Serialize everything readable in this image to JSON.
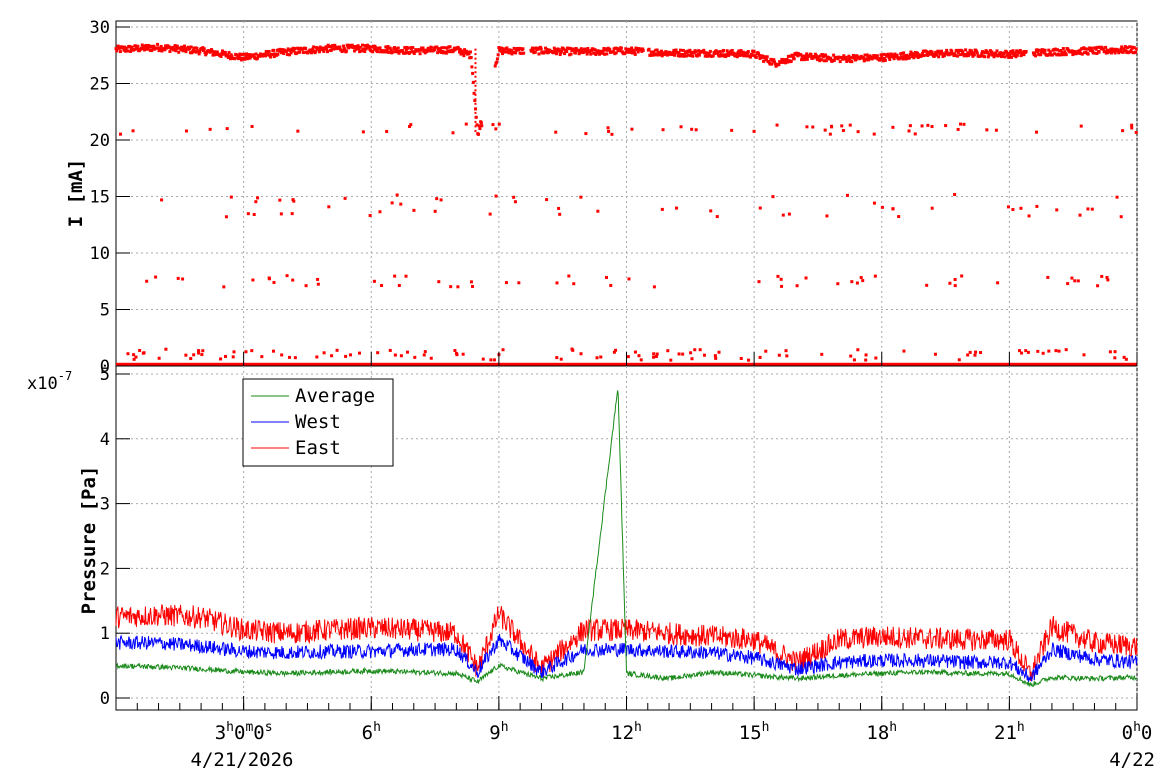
{
  "chart_data": [
    {
      "type": "scatter",
      "ylabel": "I [mA]",
      "ylim": [
        0,
        30
      ],
      "yticks": [
        "0",
        "5",
        "10",
        "15",
        "20",
        "25",
        "30"
      ],
      "grid": true,
      "series": [
        {
          "color": "#ff0000",
          "description": "beam current samples",
          "main_band": [
            [
              0.0,
              28.0
            ],
            [
              1.0,
              28.2
            ],
            [
              2.0,
              27.9
            ],
            [
              3.0,
              27.3
            ],
            [
              4.0,
              27.8
            ],
            [
              5.0,
              28.1
            ],
            [
              6.0,
              28.1
            ],
            [
              7.0,
              27.9
            ],
            [
              8.0,
              28.0
            ],
            [
              8.35,
              27.5
            ],
            [
              8.5,
              20.5
            ],
            [
              9.0,
              27.9
            ],
            [
              10.0,
              27.9
            ],
            [
              11.0,
              27.8
            ],
            [
              12.0,
              27.9
            ],
            [
              13.0,
              27.7
            ],
            [
              14.0,
              27.7
            ],
            [
              15.0,
              27.6
            ],
            [
              15.5,
              26.8
            ],
            [
              16.0,
              27.4
            ],
            [
              17.0,
              27.2
            ],
            [
              18.0,
              27.3
            ],
            [
              19.0,
              27.6
            ],
            [
              20.0,
              27.7
            ],
            [
              21.0,
              27.6
            ],
            [
              22.0,
              27.8
            ],
            [
              23.0,
              27.9
            ],
            [
              24.0,
              28.0
            ]
          ],
          "scatter_levels": [
            21.0,
            14.2,
            7.5,
            1.0,
            0.2
          ]
        }
      ]
    },
    {
      "type": "line",
      "ylabel": "Pressure [Pa]",
      "y_multiplier": "x10",
      "y_exponent": "-7",
      "ylim": [
        0,
        5
      ],
      "yticks": [
        "0",
        "1",
        "2",
        "3",
        "4",
        "5"
      ],
      "grid": true,
      "legend_position": "top-left",
      "series": [
        {
          "name": "Average",
          "color": "#1a8a1a",
          "x": [
            0,
            1,
            2,
            3,
            4,
            5,
            6,
            7,
            8,
            8.5,
            9,
            10,
            11,
            11.8,
            12,
            13,
            14,
            15,
            16,
            17,
            18,
            19,
            20,
            21,
            21.5,
            22,
            23,
            24
          ],
          "y": [
            0.5,
            0.48,
            0.45,
            0.4,
            0.38,
            0.4,
            0.42,
            0.4,
            0.38,
            0.25,
            0.5,
            0.3,
            0.4,
            4.8,
            0.38,
            0.3,
            0.4,
            0.35,
            0.3,
            0.35,
            0.38,
            0.4,
            0.38,
            0.38,
            0.2,
            0.32,
            0.3,
            0.32
          ]
        },
        {
          "name": "West",
          "color": "#0000ff",
          "x": [
            0,
            1,
            2,
            3,
            4,
            5,
            6,
            7,
            8,
            8.5,
            9,
            10,
            11,
            12,
            13,
            14,
            15,
            16,
            17,
            18,
            19,
            20,
            21,
            21.5,
            22,
            23,
            24
          ],
          "y": [
            0.85,
            0.85,
            0.8,
            0.72,
            0.7,
            0.72,
            0.72,
            0.75,
            0.75,
            0.4,
            0.9,
            0.4,
            0.75,
            0.75,
            0.72,
            0.7,
            0.62,
            0.45,
            0.55,
            0.58,
            0.58,
            0.55,
            0.55,
            0.3,
            0.75,
            0.6,
            0.55
          ]
        },
        {
          "name": "East",
          "color": "#ff0000",
          "x": [
            0,
            1,
            2,
            3,
            4,
            5,
            6,
            7,
            8,
            8.5,
            9,
            10,
            11,
            12,
            13,
            14,
            15,
            16,
            17,
            18,
            19,
            20,
            21,
            21.5,
            22,
            23,
            24
          ],
          "y": [
            1.25,
            1.28,
            1.25,
            1.05,
            1.0,
            1.05,
            1.08,
            1.05,
            1.0,
            0.45,
            1.3,
            0.45,
            1.05,
            1.05,
            1.0,
            0.95,
            0.9,
            0.55,
            0.9,
            0.95,
            0.92,
            0.9,
            0.9,
            0.35,
            1.1,
            0.85,
            0.8
          ]
        }
      ]
    }
  ],
  "x_axis": {
    "range_hours": [
      0,
      24
    ],
    "ticks": [
      {
        "h": 3,
        "base": "3",
        "sup1": "h",
        "mid": "0",
        "sup2": "m",
        "tail": "0",
        "sup3": "s"
      },
      {
        "h": 6,
        "base": "6",
        "sup1": "h"
      },
      {
        "h": 9,
        "base": "9",
        "sup1": "h"
      },
      {
        "h": 12,
        "base": "12",
        "sup1": "h"
      },
      {
        "h": 15,
        "base": "15",
        "sup1": "h"
      },
      {
        "h": 18,
        "base": "18",
        "sup1": "h"
      },
      {
        "h": 21,
        "base": "21",
        "sup1": "h"
      },
      {
        "h": 24,
        "base": "0",
        "sup1": "h",
        "mid": "0"
      }
    ],
    "date_start": "4/21/2026",
    "date_end": "4/22"
  },
  "legend": {
    "items": [
      {
        "label": "Average",
        "color": "#1a8a1a"
      },
      {
        "label": "West",
        "color": "#0000ff"
      },
      {
        "label": "East",
        "color": "#ff0000"
      }
    ]
  }
}
